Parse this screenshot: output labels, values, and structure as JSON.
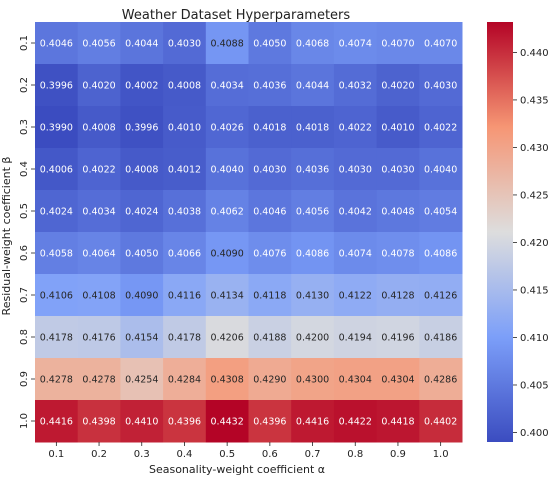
{
  "chart_data": {
    "type": "heatmap",
    "title": "Weather Dataset Hyperparameters",
    "xlabel": "Seasonality-weight coefficient α",
    "ylabel": "Residual-weight coefficient β",
    "x_categories": [
      "0.1",
      "0.2",
      "0.3",
      "0.4",
      "0.5",
      "0.6",
      "0.7",
      "0.8",
      "0.9",
      "1.0"
    ],
    "y_categories": [
      "0.1",
      "0.2",
      "0.3",
      "0.4",
      "0.5",
      "0.6",
      "0.7",
      "0.8",
      "0.9",
      "1.0"
    ],
    "values": [
      [
        0.4046,
        0.4056,
        0.4044,
        0.403,
        0.4088,
        0.405,
        0.4068,
        0.4074,
        0.407,
        0.407
      ],
      [
        0.3996,
        0.402,
        0.4002,
        0.4008,
        0.4034,
        0.4036,
        0.4044,
        0.4032,
        0.402,
        0.403
      ],
      [
        0.399,
        0.4008,
        0.3996,
        0.401,
        0.4026,
        0.4018,
        0.4018,
        0.4022,
        0.401,
        0.4022
      ],
      [
        0.4006,
        0.4022,
        0.4008,
        0.4012,
        0.404,
        0.403,
        0.4036,
        0.403,
        0.403,
        0.404
      ],
      [
        0.4024,
        0.4034,
        0.4024,
        0.4038,
        0.4062,
        0.4046,
        0.4056,
        0.4042,
        0.4048,
        0.4054
      ],
      [
        0.4058,
        0.4064,
        0.405,
        0.4066,
        0.409,
        0.4076,
        0.4086,
        0.4074,
        0.4078,
        0.4086
      ],
      [
        0.4106,
        0.4108,
        0.409,
        0.4116,
        0.4134,
        0.4118,
        0.413,
        0.4122,
        0.4128,
        0.4126
      ],
      [
        0.4178,
        0.4176,
        0.4154,
        0.4178,
        0.4206,
        0.4188,
        0.42,
        0.4194,
        0.4196,
        0.4186
      ],
      [
        0.4278,
        0.4278,
        0.4254,
        0.4284,
        0.4308,
        0.429,
        0.43,
        0.4304,
        0.4304,
        0.4286
      ],
      [
        0.4416,
        0.4398,
        0.441,
        0.4396,
        0.4432,
        0.4396,
        0.4416,
        0.4422,
        0.4418,
        0.4402
      ]
    ],
    "colormap": "coolwarm",
    "vmin": 0.399,
    "vmax": 0.4432,
    "colorbar_ticks": [
      "0.400",
      "0.405",
      "0.410",
      "0.415",
      "0.420",
      "0.425",
      "0.430",
      "0.435",
      "0.440"
    ],
    "colorbar_tick_values": [
      0.4,
      0.405,
      0.41,
      0.415,
      0.42,
      0.425,
      0.43,
      0.435,
      0.44
    ],
    "grid": false,
    "legend": "none"
  }
}
